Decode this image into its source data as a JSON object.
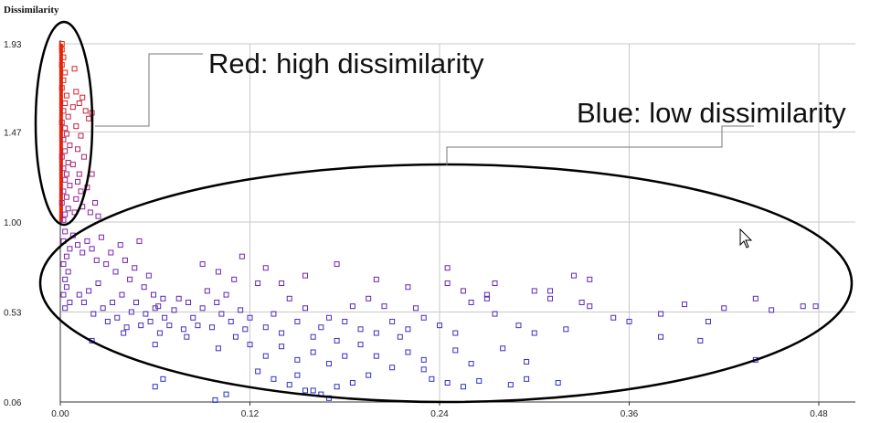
{
  "chart_data": {
    "type": "scatter",
    "title": "",
    "xlabel": "",
    "ylabel": "Dissimilarity",
    "xlim": [
      0,
      0.48
    ],
    "ylim": [
      0.06,
      1.93
    ],
    "x_ticks": [
      "0.00",
      "0.12",
      "0.24",
      "0.36",
      "0.48"
    ],
    "y_ticks": [
      "0.06",
      "0.53",
      "1.00",
      "1.47",
      "1.93"
    ],
    "grid": true,
    "color_scale": {
      "low": "#2233cc",
      "mid": "#8822aa",
      "high": "#ee2200"
    },
    "annotations": [
      {
        "text": "Red: high dissimilarity"
      },
      {
        "text": "Blue: low dissimilarity"
      }
    ],
    "points": [
      [
        0.001,
        1.93
      ],
      [
        0.001,
        1.9
      ],
      [
        0.002,
        1.86
      ],
      [
        0.001,
        1.82
      ],
      [
        0.003,
        1.78
      ],
      [
        0.002,
        1.74
      ],
      [
        0.001,
        1.7
      ],
      [
        0.004,
        1.66
      ],
      [
        0.003,
        1.62
      ],
      [
        0.002,
        1.58
      ],
      [
        0.005,
        1.55
      ],
      [
        0.001,
        1.52
      ],
      [
        0.003,
        1.49
      ],
      [
        0.004,
        1.46
      ],
      [
        0.002,
        1.43
      ],
      [
        0.006,
        1.4
      ],
      [
        0.003,
        1.37
      ],
      [
        0.001,
        1.34
      ],
      [
        0.005,
        1.31
      ],
      [
        0.002,
        1.28
      ],
      [
        0.004,
        1.25
      ],
      [
        0.003,
        1.22
      ],
      [
        0.006,
        1.19
      ],
      [
        0.002,
        1.16
      ],
      [
        0.004,
        1.13
      ],
      [
        0.001,
        1.1
      ],
      [
        0.005,
        1.07
      ],
      [
        0.003,
        1.04
      ],
      [
        0.002,
        1.01
      ],
      [
        0.008,
        1.6
      ],
      [
        0.009,
        1.8
      ],
      [
        0.01,
        1.68
      ],
      [
        0.012,
        1.62
      ],
      [
        0.014,
        1.65
      ],
      [
        0.016,
        1.58
      ],
      [
        0.018,
        1.54
      ],
      [
        0.02,
        1.57
      ],
      [
        0.01,
        1.5
      ],
      [
        0.013,
        1.45
      ],
      [
        0.011,
        1.38
      ],
      [
        0.015,
        1.34
      ],
      [
        0.008,
        1.3
      ],
      [
        0.012,
        1.25
      ],
      [
        0.02,
        1.25
      ],
      [
        0.017,
        1.18
      ],
      [
        0.01,
        1.12
      ],
      [
        0.009,
        1.05
      ],
      [
        0.014,
        1.08
      ],
      [
        0.022,
        1.1
      ],
      [
        0.019,
        1.05
      ],
      [
        0.024,
        1.03
      ],
      [
        0.013,
        1.16
      ],
      [
        0.011,
        1.21
      ],
      [
        0.003,
        0.95
      ],
      [
        0.002,
        0.9
      ],
      [
        0.006,
        0.86
      ],
      [
        0.004,
        0.82
      ],
      [
        0.002,
        0.78
      ],
      [
        0.005,
        0.74
      ],
      [
        0.003,
        0.7
      ],
      [
        0.004,
        0.66
      ],
      [
        0.002,
        0.62
      ],
      [
        0.006,
        0.58
      ],
      [
        0.003,
        0.55
      ],
      [
        0.008,
        0.93
      ],
      [
        0.011,
        0.88
      ],
      [
        0.014,
        0.84
      ],
      [
        0.017,
        0.9
      ],
      [
        0.02,
        0.86
      ],
      [
        0.023,
        0.8
      ],
      [
        0.026,
        0.92
      ],
      [
        0.029,
        0.78
      ],
      [
        0.032,
        0.84
      ],
      [
        0.035,
        0.74
      ],
      [
        0.038,
        0.88
      ],
      [
        0.041,
        0.8
      ],
      [
        0.044,
        0.7
      ],
      [
        0.047,
        0.76
      ],
      [
        0.05,
        0.9
      ],
      [
        0.053,
        0.66
      ],
      [
        0.056,
        0.72
      ],
      [
        0.059,
        0.62
      ],
      [
        0.062,
        0.56
      ],
      [
        0.065,
        0.6
      ],
      [
        0.012,
        0.62
      ],
      [
        0.015,
        0.58
      ],
      [
        0.018,
        0.64
      ],
      [
        0.021,
        0.52
      ],
      [
        0.024,
        0.68
      ],
      [
        0.027,
        0.55
      ],
      [
        0.03,
        0.48
      ],
      [
        0.033,
        0.58
      ],
      [
        0.036,
        0.5
      ],
      [
        0.039,
        0.62
      ],
      [
        0.042,
        0.45
      ],
      [
        0.045,
        0.53
      ],
      [
        0.048,
        0.58
      ],
      [
        0.051,
        0.46
      ],
      [
        0.054,
        0.52
      ],
      [
        0.057,
        0.48
      ],
      [
        0.06,
        0.55
      ],
      [
        0.063,
        0.42
      ],
      [
        0.066,
        0.5
      ],
      [
        0.069,
        0.46
      ],
      [
        0.072,
        0.54
      ],
      [
        0.075,
        0.6
      ],
      [
        0.078,
        0.44
      ],
      [
        0.081,
        0.58
      ],
      [
        0.084,
        0.5
      ],
      [
        0.087,
        0.46
      ],
      [
        0.09,
        0.55
      ],
      [
        0.093,
        0.64
      ],
      [
        0.096,
        0.45
      ],
      [
        0.099,
        0.58
      ],
      [
        0.102,
        0.52
      ],
      [
        0.105,
        0.62
      ],
      [
        0.108,
        0.48
      ],
      [
        0.111,
        0.4
      ],
      [
        0.114,
        0.54
      ],
      [
        0.117,
        0.44
      ],
      [
        0.12,
        0.5
      ],
      [
        0.125,
        0.68
      ],
      [
        0.13,
        0.45
      ],
      [
        0.135,
        0.52
      ],
      [
        0.14,
        0.42
      ],
      [
        0.145,
        0.6
      ],
      [
        0.15,
        0.48
      ],
      [
        0.155,
        0.55
      ],
      [
        0.16,
        0.4
      ],
      [
        0.165,
        0.45
      ],
      [
        0.17,
        0.5
      ],
      [
        0.175,
        0.38
      ],
      [
        0.18,
        0.48
      ],
      [
        0.185,
        0.56
      ],
      [
        0.19,
        0.44
      ],
      [
        0.195,
        0.6
      ],
      [
        0.2,
        0.42
      ],
      [
        0.205,
        0.56
      ],
      [
        0.21,
        0.48
      ],
      [
        0.215,
        0.4
      ],
      [
        0.22,
        0.44
      ],
      [
        0.225,
        0.55
      ],
      [
        0.23,
        0.5
      ],
      [
        0.24,
        0.46
      ],
      [
        0.245,
        0.68
      ],
      [
        0.25,
        0.42
      ],
      [
        0.26,
        0.58
      ],
      [
        0.27,
        0.6
      ],
      [
        0.275,
        0.52
      ],
      [
        0.29,
        0.46
      ],
      [
        0.3,
        0.42
      ],
      [
        0.31,
        0.64
      ],
      [
        0.32,
        0.44
      ],
      [
        0.335,
        0.56
      ],
      [
        0.35,
        0.5
      ],
      [
        0.36,
        0.48
      ],
      [
        0.38,
        0.52
      ],
      [
        0.395,
        0.57
      ],
      [
        0.41,
        0.48
      ],
      [
        0.42,
        0.55
      ],
      [
        0.44,
        0.6
      ],
      [
        0.45,
        0.54
      ],
      [
        0.47,
        0.56
      ],
      [
        0.478,
        0.56
      ],
      [
        0.09,
        0.78
      ],
      [
        0.1,
        0.74
      ],
      [
        0.11,
        0.7
      ],
      [
        0.115,
        0.82
      ],
      [
        0.13,
        0.76
      ],
      [
        0.14,
        0.68
      ],
      [
        0.155,
        0.72
      ],
      [
        0.175,
        0.78
      ],
      [
        0.2,
        0.7
      ],
      [
        0.22,
        0.66
      ],
      [
        0.245,
        0.76
      ],
      [
        0.255,
        0.64
      ],
      [
        0.275,
        0.68
      ],
      [
        0.325,
        0.72
      ],
      [
        0.335,
        0.7
      ],
      [
        0.27,
        0.62
      ],
      [
        0.3,
        0.64
      ],
      [
        0.33,
        0.58
      ],
      [
        0.31,
        0.6
      ],
      [
        0.38,
        0.4
      ],
      [
        0.405,
        0.38
      ],
      [
        0.44,
        0.28
      ],
      [
        0.02,
        0.38
      ],
      [
        0.04,
        0.42
      ],
      [
        0.06,
        0.36
      ],
      [
        0.08,
        0.4
      ],
      [
        0.1,
        0.34
      ],
      [
        0.12,
        0.36
      ],
      [
        0.13,
        0.3
      ],
      [
        0.14,
        0.35
      ],
      [
        0.15,
        0.28
      ],
      [
        0.16,
        0.32
      ],
      [
        0.17,
        0.26
      ],
      [
        0.18,
        0.3
      ],
      [
        0.19,
        0.36
      ],
      [
        0.2,
        0.3
      ],
      [
        0.21,
        0.24
      ],
      [
        0.22,
        0.32
      ],
      [
        0.23,
        0.28
      ],
      [
        0.25,
        0.33
      ],
      [
        0.26,
        0.26
      ],
      [
        0.28,
        0.34
      ],
      [
        0.295,
        0.27
      ],
      [
        0.125,
        0.22
      ],
      [
        0.135,
        0.18
      ],
      [
        0.145,
        0.15
      ],
      [
        0.155,
        0.12
      ],
      [
        0.165,
        0.1
      ],
      [
        0.175,
        0.14
      ],
      [
        0.185,
        0.16
      ],
      [
        0.195,
        0.2
      ],
      [
        0.235,
        0.18
      ],
      [
        0.245,
        0.16
      ],
      [
        0.255,
        0.14
      ],
      [
        0.265,
        0.17
      ],
      [
        0.285,
        0.15
      ],
      [
        0.295,
        0.18
      ],
      [
        0.315,
        0.16
      ],
      [
        0.06,
        0.14
      ],
      [
        0.065,
        0.18
      ],
      [
        0.098,
        0.07
      ],
      [
        0.105,
        0.1
      ],
      [
        0.15,
        0.2
      ],
      [
        0.17,
        0.08
      ],
      [
        0.16,
        0.12
      ],
      [
        0.23,
        0.23
      ]
    ]
  }
}
